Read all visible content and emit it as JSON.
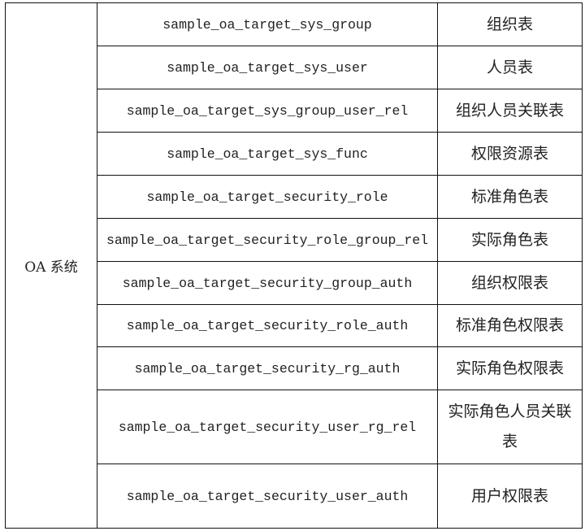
{
  "system": "OA 系统",
  "rows": [
    {
      "table": "sample_oa_target_sys_group",
      "desc": "组织表"
    },
    {
      "table": "sample_oa_target_sys_user",
      "desc": "人员表"
    },
    {
      "table": "sample_oa_target_sys_group_user_rel",
      "desc": "组织人员关联表"
    },
    {
      "table": "sample_oa_target_sys_func",
      "desc": "权限资源表"
    },
    {
      "table": "sample_oa_target_security_role",
      "desc": "标准角色表"
    },
    {
      "table": "sample_oa_target_security_role_group_rel",
      "desc": "实际角色表"
    },
    {
      "table": "sample_oa_target_security_group_auth",
      "desc": "组织权限表"
    },
    {
      "table": "sample_oa_target_security_role_auth",
      "desc": "标准角色权限表"
    },
    {
      "table": "sample_oa_target_security_rg_auth",
      "desc": "实际角色权限表"
    },
    {
      "table": "sample_oa_target_security_user_rg_rel",
      "desc": "实际角色人员关联表"
    },
    {
      "table": "sample_oa_target_security_user_auth",
      "desc": "用户权限表"
    }
  ]
}
